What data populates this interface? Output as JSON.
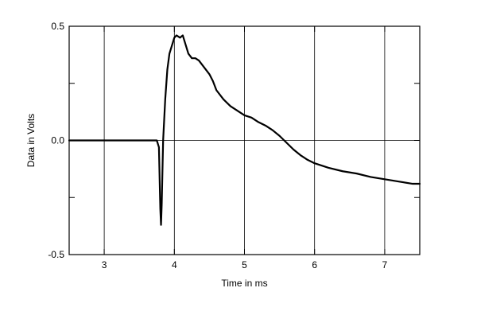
{
  "chart_data": {
    "type": "line",
    "title": "",
    "xlabel": "Time in ms",
    "ylabel": "Data in Volts",
    "xlim": [
      2.5,
      7.5
    ],
    "ylim": [
      -0.5,
      0.5
    ],
    "x_ticks": [
      3,
      4,
      5,
      6,
      7
    ],
    "x_tick_labels": [
      "3",
      "4",
      "5",
      "6",
      "7"
    ],
    "y_ticks": [
      -0.5,
      0.0,
      0.5
    ],
    "y_tick_labels": [
      "-0.5",
      "0.0",
      "0.5"
    ],
    "grid": true,
    "series": [
      {
        "x": [
          2.5,
          3.0,
          3.5,
          3.75,
          3.78,
          3.8,
          3.81,
          3.82,
          3.84,
          3.87,
          3.9,
          3.93,
          3.97,
          4.0,
          4.03,
          4.08,
          4.12,
          4.15,
          4.2,
          4.25,
          4.3,
          4.35,
          4.4,
          4.45,
          4.5,
          4.55,
          4.6,
          4.7,
          4.8,
          4.9,
          5.0,
          5.1,
          5.2,
          5.3,
          5.4,
          5.5,
          5.6,
          5.7,
          5.8,
          5.9,
          6.0,
          6.2,
          6.4,
          6.6,
          6.8,
          7.0,
          7.2,
          7.4,
          7.5
        ],
        "y": [
          0.0,
          0.0,
          0.0,
          0.0,
          -0.03,
          -0.3,
          -0.37,
          -0.28,
          0.0,
          0.18,
          0.31,
          0.38,
          0.42,
          0.45,
          0.46,
          0.45,
          0.46,
          0.43,
          0.38,
          0.36,
          0.36,
          0.35,
          0.33,
          0.31,
          0.29,
          0.26,
          0.22,
          0.18,
          0.15,
          0.13,
          0.11,
          0.1,
          0.08,
          0.065,
          0.045,
          0.02,
          -0.01,
          -0.04,
          -0.065,
          -0.085,
          -0.1,
          -0.12,
          -0.135,
          -0.145,
          -0.16,
          -0.17,
          -0.18,
          -0.19,
          -0.19
        ]
      }
    ]
  }
}
